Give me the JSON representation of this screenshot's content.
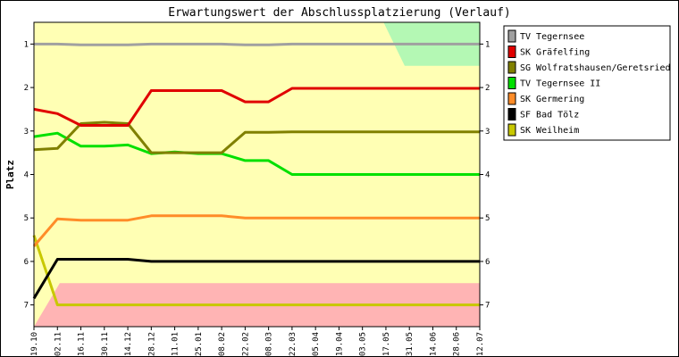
{
  "chart_data": {
    "type": "line",
    "title": "Erwartungswert der Abschlussplatzierung (Verlauf)",
    "ylabel": "Platz",
    "xlabel": "",
    "ylim": [
      0.5,
      7.5
    ],
    "y_inverted": true,
    "yticks": [
      "1",
      "2",
      "3",
      "4",
      "5",
      "6",
      "7"
    ],
    "x": [
      "19.10",
      "02.11",
      "16.11",
      "30.11",
      "14.12",
      "28.12",
      "11.01",
      "25.01",
      "08.02",
      "22.02",
      "08.03",
      "22.03",
      "05.04",
      "19.04",
      "03.05",
      "17.05",
      "31.05",
      "14.06",
      "28.06",
      "12.07"
    ],
    "legend_position": "top-right",
    "zones": [
      {
        "name": "promotion",
        "color": "#b4f8b4"
      },
      {
        "name": "relegation",
        "color": "#ffb4b4"
      },
      {
        "name": "neutral",
        "color": "#ffffb4"
      }
    ],
    "series": [
      {
        "name": "TV Tegernsee",
        "color": "#a0a0a0",
        "values": [
          1.0,
          1.0,
          1.02,
          1.02,
          1.02,
          1.0,
          1.0,
          1.0,
          1.0,
          1.02,
          1.02,
          1.0,
          1.0,
          1.0,
          1.0,
          1.0,
          1.0,
          1.0,
          1.0,
          1.0
        ]
      },
      {
        "name": "SK Gräfelfing",
        "color": "#e00000",
        "values": [
          2.5,
          2.6,
          2.87,
          2.87,
          2.87,
          2.07,
          2.07,
          2.07,
          2.07,
          2.33,
          2.33,
          2.02,
          2.02,
          2.02,
          2.02,
          2.02,
          2.02,
          2.02,
          2.02,
          2.02
        ]
      },
      {
        "name": "SG Wolfratshausen/Geretsried",
        "color": "#808000",
        "values": [
          3.43,
          3.4,
          2.83,
          2.8,
          2.83,
          3.5,
          3.5,
          3.5,
          3.5,
          3.03,
          3.03,
          3.02,
          3.02,
          3.02,
          3.02,
          3.02,
          3.02,
          3.02,
          3.02,
          3.02
        ]
      },
      {
        "name": "TV Tegernsee II",
        "color": "#00e000",
        "values": [
          3.13,
          3.05,
          3.35,
          3.35,
          3.32,
          3.52,
          3.48,
          3.52,
          3.52,
          3.68,
          3.68,
          4.0,
          4.0,
          4.0,
          4.0,
          4.0,
          4.0,
          4.0,
          4.0,
          4.0
        ]
      },
      {
        "name": "SK Germering",
        "color": "#ff8c28",
        "values": [
          5.65,
          5.02,
          5.05,
          5.05,
          5.05,
          4.95,
          4.95,
          4.95,
          4.95,
          5.0,
          5.0,
          5.0,
          5.0,
          5.0,
          5.0,
          5.0,
          5.0,
          5.0,
          5.0,
          5.0
        ]
      },
      {
        "name": "SF Bad Tölz",
        "color": "#000000",
        "values": [
          6.85,
          5.95,
          5.95,
          5.95,
          5.95,
          6.0,
          6.0,
          6.0,
          6.0,
          6.0,
          6.0,
          6.0,
          6.0,
          6.0,
          6.0,
          6.0,
          6.0,
          6.0,
          6.0,
          6.0
        ]
      },
      {
        "name": "SK Weilheim",
        "color": "#c8c800",
        "values": [
          5.4,
          7.0,
          7.0,
          7.0,
          7.0,
          7.0,
          7.0,
          7.0,
          7.0,
          7.0,
          7.0,
          7.0,
          7.0,
          7.0,
          7.0,
          7.0,
          7.0,
          7.0,
          7.0,
          7.0
        ]
      }
    ]
  }
}
